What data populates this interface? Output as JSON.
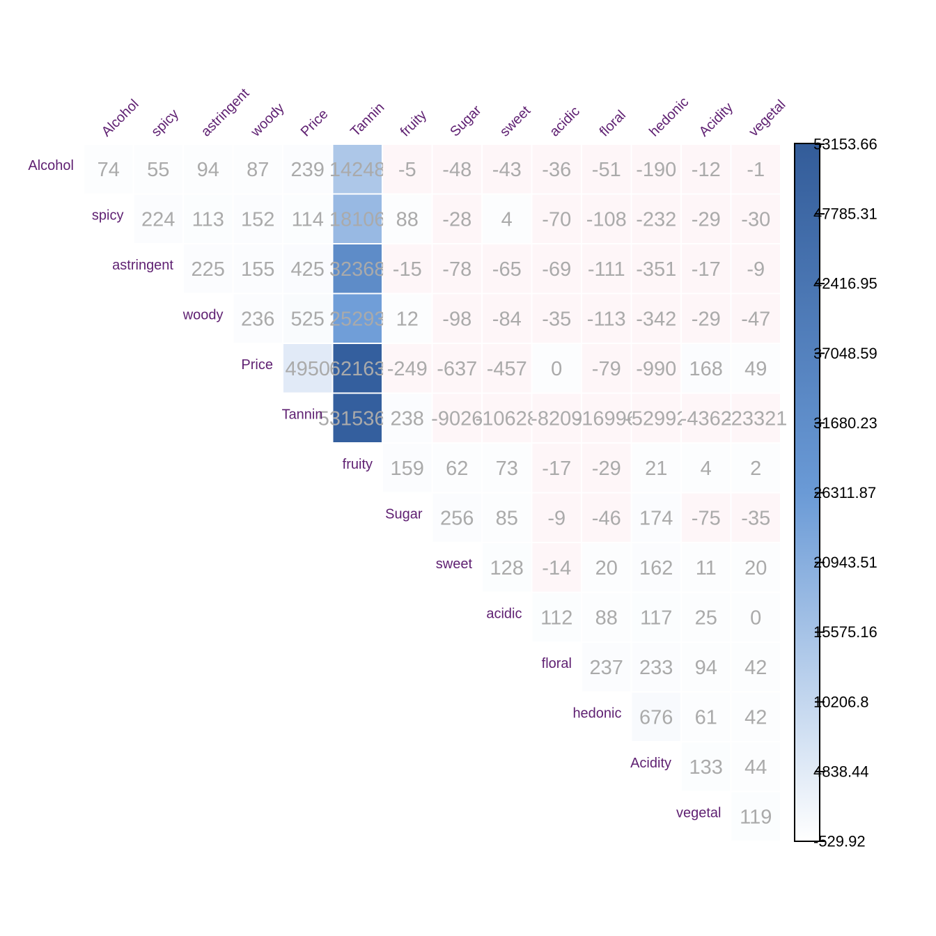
{
  "chart_data": {
    "type": "heatmap",
    "subtype": "upper-triangle covariance matrix",
    "variables": [
      "Alcohol",
      "spicy",
      "astringent",
      "woody",
      "Price",
      "Tannin",
      "fruity",
      "Sugar",
      "sweet",
      "acidic",
      "floral",
      "hedonic",
      "Acidity",
      "vegetal"
    ],
    "rows": [
      [
        "74",
        "55",
        "94",
        "87",
        "239",
        "14248",
        "-5",
        "-48",
        "-43",
        "-36",
        "-51",
        "-190",
        "-12",
        "-1"
      ],
      [
        "224",
        "113",
        "152",
        "114",
        "18106",
        "88",
        "-28",
        "4",
        "-70",
        "-108",
        "-232",
        "-29",
        "-30"
      ],
      [
        "225",
        "155",
        "425",
        "32368",
        "-15",
        "-78",
        "-65",
        "-69",
        "-111",
        "-351",
        "-17",
        "-9"
      ],
      [
        "236",
        "525",
        "25293",
        "12",
        "-98",
        "-84",
        "-35",
        "-113",
        "-342",
        "-29",
        "-47"
      ],
      [
        "4950",
        "62163",
        "-249",
        "-637",
        "-457",
        "0",
        "-79",
        "-990",
        "168",
        "49"
      ],
      [
        "5315362",
        "238",
        "-9026",
        "-10628",
        "-8209",
        "-16996",
        "-52992",
        "-4362",
        "-23321"
      ],
      [
        "159",
        "62",
        "73",
        "-17",
        "-29",
        "21",
        "4",
        "2"
      ],
      [
        "256",
        "85",
        "-9",
        "-46",
        "174",
        "-75",
        "-35"
      ],
      [
        "128",
        "-14",
        "20",
        "162",
        "11",
        "20"
      ],
      [
        "112",
        "88",
        "117",
        "25",
        "0"
      ],
      [
        "237",
        "233",
        "94",
        "42"
      ],
      [
        "676",
        "61",
        "42"
      ],
      [
        "133",
        "44"
      ],
      [
        "119"
      ]
    ],
    "colorbar": {
      "range": [
        -529.92,
        53153.66
      ],
      "ticks": [
        "53153.66",
        "47785.31",
        "42416.95",
        "37048.59",
        "31680.23",
        "26311.87",
        "20943.51",
        "15575.16",
        "10206.8",
        "4838.44",
        "-529.92"
      ],
      "color_low": "#ffffff",
      "color_mid": "#6a9ad6",
      "color_high": "#335c99",
      "negative_tint": "#fef6f8"
    },
    "colors": {
      "label": "#5e1f71",
      "cell_text": "#aaaaaa",
      "saturated_cell": "#345f9e"
    },
    "grid": false,
    "legend": "right colorbar"
  }
}
